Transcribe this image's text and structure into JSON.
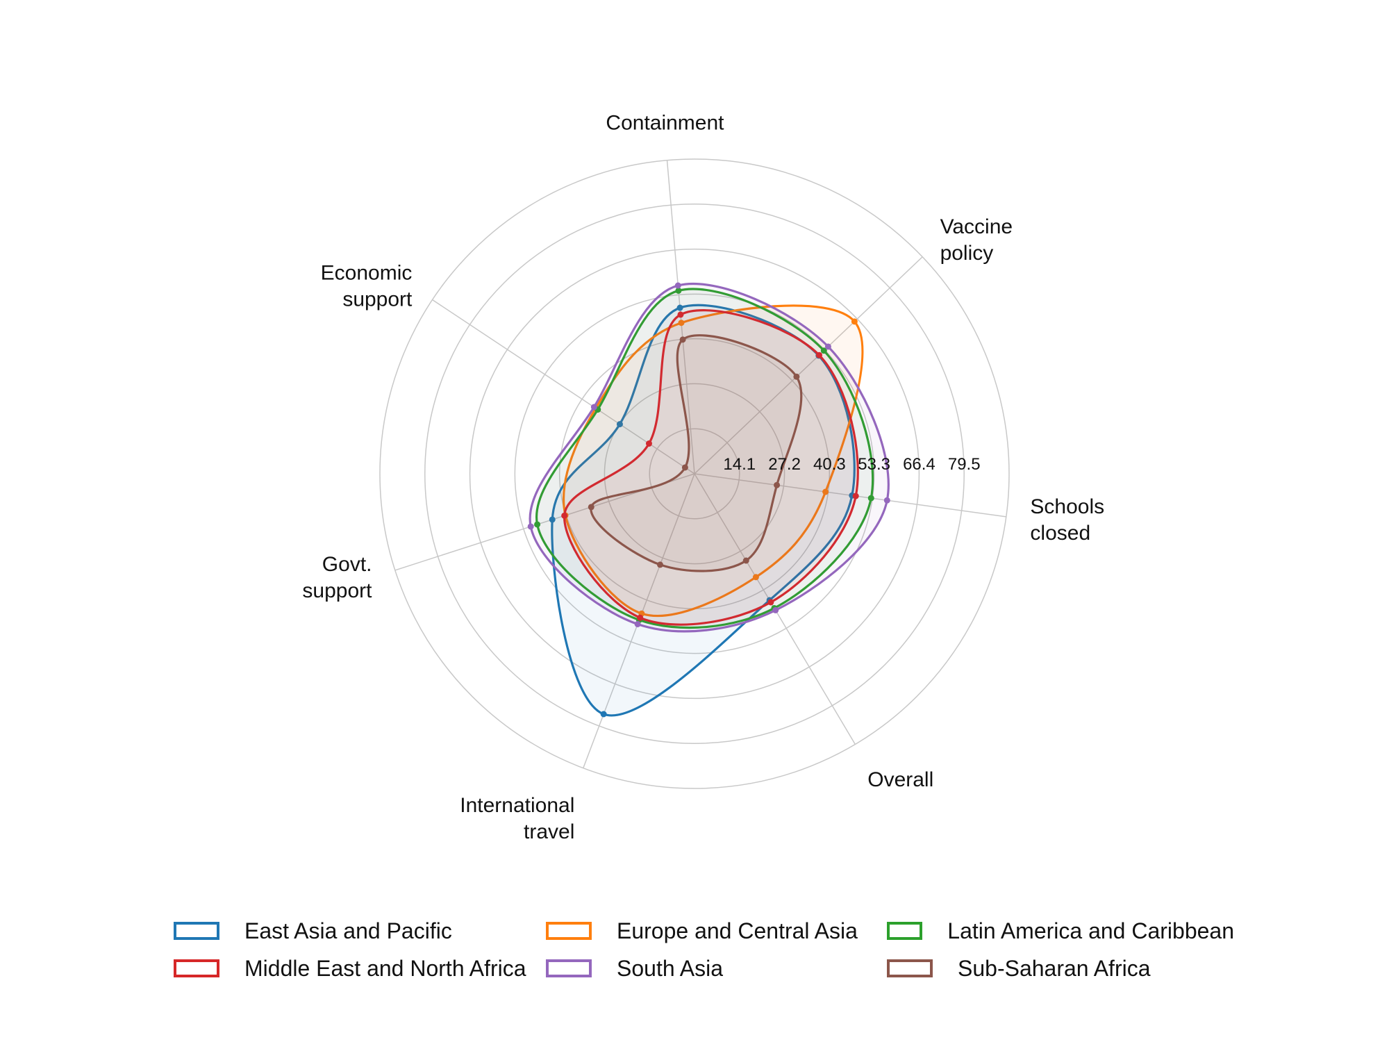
{
  "chart_data": {
    "type": "radar",
    "axes": [
      "Containment",
      "Vaccine policy",
      "Schools closed",
      "Overall",
      "International travel",
      "Govt. support",
      "Economic support"
    ],
    "axis_label_lines": [
      [
        "Containment"
      ],
      [
        "Vaccine",
        "policy"
      ],
      [
        "Schools",
        "closed"
      ],
      [
        "Overall"
      ],
      [
        "International",
        "travel"
      ],
      [
        "Govt.",
        "support"
      ],
      [
        "Economic",
        "support"
      ]
    ],
    "radial_ticks": [
      "14.1",
      "27.2",
      "40.3",
      "53.3",
      "66.4",
      "79.5"
    ],
    "r_range": [
      1,
      92.6
    ],
    "series": [
      {
        "name": "East Asia and Pacific",
        "color": "#1f77b4",
        "values": [
          49.5,
          50.9,
          47.3,
          43.8,
          75.8,
          44.5,
          27.1
        ]
      },
      {
        "name": "Europe and Central Asia",
        "color": "#ff7f0e",
        "values": [
          45.1,
          65.3,
          39.5,
          36.0,
          44.5,
          40.5,
          35.5
        ]
      },
      {
        "name": "Latin America and Caribbean",
        "color": "#2ca02c",
        "values": [
          54.5,
          53.0,
          52.9,
          46.5,
          46.5,
          49.1,
          34.8
        ]
      },
      {
        "name": "Middle East and North Africa",
        "color": "#d62728",
        "values": [
          47.5,
          51.1,
          48.4,
          44.5,
          45.8,
          40.8,
          16.9
        ]
      },
      {
        "name": "South Asia",
        "color": "#9467bd",
        "values": [
          56.0,
          54.7,
          57.6,
          47.2,
          47.8,
          51.1,
          36.1
        ]
      },
      {
        "name": "Sub-Saharan Africa",
        "color": "#8c564b",
        "values": [
          40.2,
          42.0,
          25.2,
          30.4,
          29.3,
          32.6,
          4.3
        ]
      }
    ],
    "legend": {
      "position": "bottom",
      "order": [
        "East Asia and Pacific",
        "Europe and Central Asia",
        "Latin America and Caribbean",
        "Middle East and North Africa",
        "South Asia",
        "Sub-Saharan Africa"
      ]
    }
  }
}
